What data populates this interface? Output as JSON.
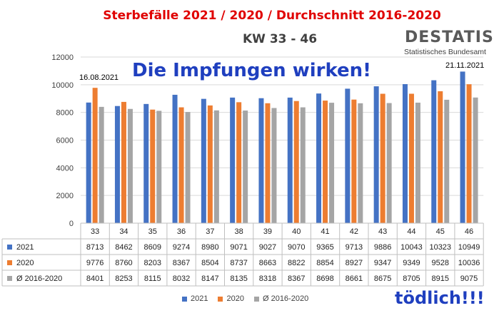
{
  "header": {
    "title": "Sterbefälle 2021 / 2020 / Durchschnitt 2016-2020",
    "subtitle": "KW 33 - 46",
    "logo_brand": "DESTATIS",
    "logo_sub": "Statistisches Bundesamt"
  },
  "annotations": {
    "banner": "Die Impfungen wirken!",
    "start_date": "16.08.2021",
    "end_date": "21.11.2021",
    "footer": "tödlich!!!"
  },
  "colors": {
    "s2021": "#4472c4",
    "s2020": "#ed7d31",
    "savg": "#a5a5a5",
    "title": "#e00000",
    "banner": "#1f3fbf"
  },
  "chart_data": {
    "type": "bar",
    "title": "Sterbefälle 2021 / 2020 / Durchschnitt 2016-2020",
    "subtitle": "KW 33 - 46",
    "xlabel": "",
    "ylabel": "",
    "ylim": [
      0,
      12000
    ],
    "yticks": [
      0,
      2000,
      4000,
      6000,
      8000,
      10000,
      12000
    ],
    "grid": true,
    "legend_position": "bottom",
    "categories": [
      "33",
      "34",
      "35",
      "36",
      "37",
      "38",
      "39",
      "40",
      "41",
      "42",
      "43",
      "44",
      "45",
      "46"
    ],
    "series": [
      {
        "name": "2021",
        "color": "#4472c4",
        "values": [
          8713,
          8462,
          8609,
          9274,
          8980,
          9071,
          9027,
          9070,
          9365,
          9713,
          9886,
          10043,
          10323,
          10949
        ]
      },
      {
        "name": "2020",
        "color": "#ed7d31",
        "values": [
          9776,
          8760,
          8203,
          8367,
          8504,
          8737,
          8663,
          8822,
          8854,
          8927,
          9347,
          9349,
          9528,
          10036
        ]
      },
      {
        "name": "Ø 2016-2020",
        "color": "#a5a5a5",
        "values": [
          8401,
          8253,
          8115,
          8032,
          8147,
          8135,
          8318,
          8367,
          8698,
          8661,
          8675,
          8705,
          8915,
          9075
        ]
      }
    ]
  }
}
